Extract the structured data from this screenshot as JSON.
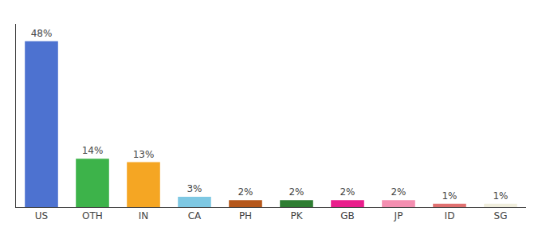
{
  "chart_data": {
    "type": "bar",
    "categories": [
      "US",
      "OTH",
      "IN",
      "CA",
      "PH",
      "PK",
      "GB",
      "JP",
      "ID",
      "SG"
    ],
    "values": [
      48,
      14,
      13,
      3,
      2,
      2,
      2,
      2,
      1,
      1
    ],
    "value_labels": [
      "48%",
      "14%",
      "13%",
      "3%",
      "2%",
      "2%",
      "2%",
      "2%",
      "1%",
      "1%"
    ],
    "colors": [
      "#4d72d0",
      "#3db34a",
      "#f5a623",
      "#7ec8e3",
      "#b5571b",
      "#2e7d32",
      "#e91e8c",
      "#f48fb1",
      "#e07070",
      "#f0eedd"
    ],
    "ylim": [
      0,
      53
    ],
    "grid": false,
    "data_labels": true,
    "tick_labels": "x"
  }
}
